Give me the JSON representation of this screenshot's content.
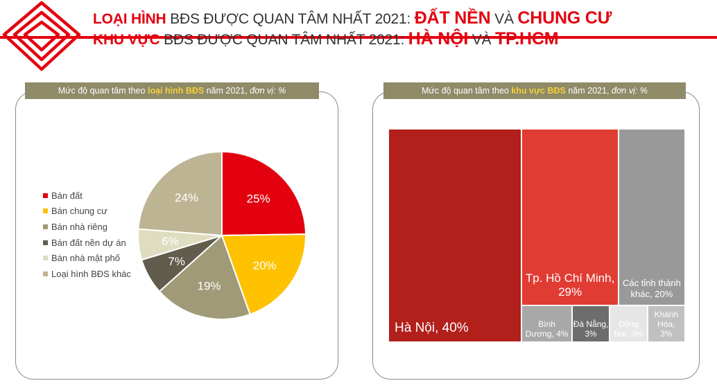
{
  "header": {
    "line1": {
      "hl1": "LOẠI HÌNH",
      "mid": " BĐS ĐƯỢC QUAN TÂM NHẤT 2021: ",
      "hl2": "ĐẤT NỀN",
      "and": " VÀ ",
      "hl3": "CHUNG CƯ"
    },
    "line2": {
      "hl1": "KHU VỰC",
      "mid": " BĐS ĐƯỢC QUAN TÂM NHẤT 2021: ",
      "hl2": "HÀ NỘI",
      "and": " VÀ ",
      "hl3": "TP.HCM"
    }
  },
  "colors": {
    "brand_red": "#e3000f",
    "band": "#8f8a68",
    "band_keyword": "#f3d23a"
  },
  "chart_data": [
    {
      "type": "pie",
      "title": {
        "pre": "Mức độ quan tâm theo ",
        "kw": "loại hình BĐS",
        "post": " năm 2021, ",
        "unit": "đơn vị: %"
      },
      "labels": [
        "Bán đất",
        "Bán chung cư",
        "Bán nhà riêng",
        "Bán đất nền dự án",
        "Bán nhà mặt phố",
        "Loại hình BĐS khác"
      ],
      "values": [
        25,
        20,
        19,
        7,
        6,
        24
      ],
      "value_labels": [
        "25%",
        "20%",
        "19%",
        "7%",
        "6%",
        "24%"
      ],
      "colors": [
        "#e3000f",
        "#fec200",
        "#a09a78",
        "#615c4c",
        "#deddc0",
        "#bdb494"
      ],
      "legend_position": "left"
    },
    {
      "type": "treemap",
      "title": {
        "pre": "Mức độ quan tâm theo ",
        "kw": "khu vực BĐS",
        "post": " năm 2021, ",
        "unit": "đơn vị: %"
      },
      "items": [
        {
          "name": "Hà Nội",
          "value": 40,
          "label_lines": [
            "Hà Nội, 40%"
          ],
          "color": "#b2201c"
        },
        {
          "name": "Tp. Hồ Chí Minh",
          "value": 29,
          "label_lines": [
            "Tp. Hồ Chí Minh,",
            "29%"
          ],
          "color": "#e13c33"
        },
        {
          "name": "Các tỉnh thành khác",
          "value": 20,
          "label_lines": [
            "Các tỉnh thành",
            "khác, 20%"
          ],
          "color": "#999999"
        },
        {
          "name": "Bình Dương",
          "value": 4,
          "label_lines": [
            "Bình",
            "Dương, 4%"
          ],
          "color": "#a8a8a8"
        },
        {
          "name": "Đà Nẵng",
          "value": 3,
          "label_lines": [
            "Đà Nẵng,",
            "3%"
          ],
          "color": "#6d6d6d"
        },
        {
          "name": "Đồng Nai",
          "value": 3,
          "label_lines": [
            "Đồng",
            "Nai, 3%"
          ],
          "color": "#e6e6e6"
        },
        {
          "name": "Khánh Hòa",
          "value": 3,
          "label_lines": [
            "Khánh",
            "Hòa,",
            "3%"
          ],
          "color": "#c0c0c0"
        }
      ]
    }
  ]
}
